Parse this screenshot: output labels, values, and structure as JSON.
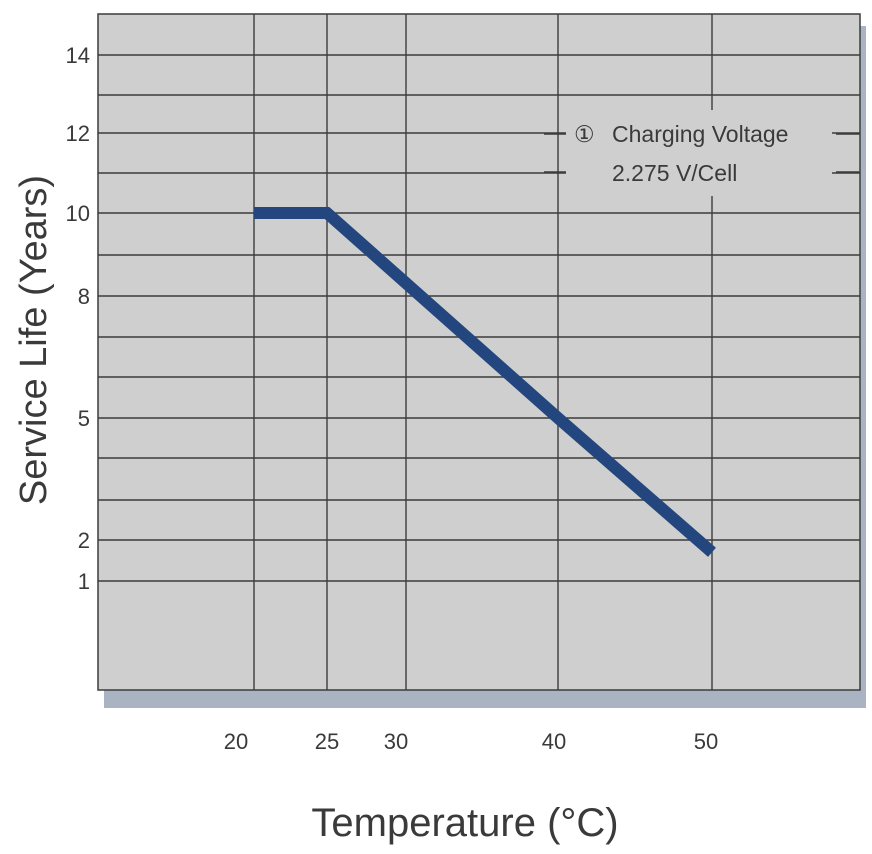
{
  "chart_data": {
    "type": "line",
    "xlabel": "Temperature (°C)",
    "ylabel": "Service Life (Years)",
    "x_ticks": [
      20,
      25,
      30,
      40,
      50
    ],
    "y_ticks": [
      1,
      2,
      5,
      8,
      10,
      12,
      14
    ],
    "grid": true,
    "series": [
      {
        "x": [
          20,
          25,
          40,
          50
        ],
        "y": [
          10,
          10,
          5,
          1.7
        ],
        "color": "#24467f"
      }
    ],
    "annotation": {
      "marker": "①",
      "line1": "Charging Voltage",
      "line2": "2.275 V/Cell"
    }
  },
  "colors": {
    "plot_background": "#cfcfcf",
    "grid": "#3c3c3c",
    "shadow": "#a9b3c2",
    "line": "#24467f"
  }
}
